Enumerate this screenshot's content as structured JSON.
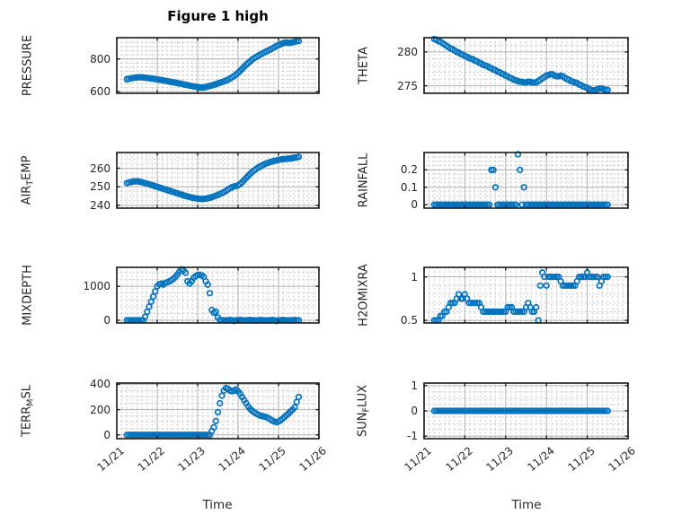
{
  "title": "Figure 1 high",
  "colors": {
    "marker": "#0072BD",
    "axis": "#1a1a1a",
    "grid_major": "#b0b0b0",
    "grid_minor": "#c2c2c2",
    "text": "#262626"
  },
  "x_axis": {
    "label": "Time",
    "lim": [
      0,
      5
    ],
    "tick_labels": [
      "11/21",
      "11/22",
      "11/23",
      "11/24",
      "11/25",
      "11/26"
    ],
    "minor_step": 0.125,
    "t0": 0.25,
    "dt": 0.05
  },
  "chart_data": [
    {
      "name": "PRESSURE",
      "type": "scatter",
      "ylabel_segments": [
        {
          "text": "PRESSURE"
        }
      ],
      "ylim": [
        590,
        930
      ],
      "yticks": [
        {
          "v": 600,
          "label": "600"
        },
        {
          "v": 800,
          "label": "800"
        }
      ],
      "y_minor_step": 25,
      "show_x_labels": false,
      "values": [
        676,
        678,
        681,
        684,
        686,
        687,
        688,
        688,
        687,
        686,
        684,
        682,
        681,
        679,
        677,
        675,
        673,
        671,
        669,
        666,
        664,
        662,
        659,
        657,
        655,
        652,
        650,
        648,
        645,
        642,
        640,
        637,
        634,
        632,
        630,
        628,
        626,
        625,
        626,
        628,
        632,
        635,
        638,
        642,
        646,
        650,
        654,
        658,
        663,
        668,
        673,
        680,
        687,
        695,
        705,
        715,
        727,
        740,
        752,
        765,
        775,
        785,
        797,
        805,
        812,
        820,
        827,
        833,
        840,
        846,
        852,
        858,
        865,
        872,
        879,
        885,
        890,
        895,
        899,
        900,
        898,
        899,
        902,
        905,
        908,
        910
      ]
    },
    {
      "name": "THETA",
      "type": "scatter",
      "ylabel_segments": [
        {
          "text": "THETA"
        }
      ],
      "ylim": [
        273.9,
        282.1
      ],
      "yticks": [
        {
          "v": 275,
          "label": "275"
        },
        {
          "v": 280,
          "label": "280"
        }
      ],
      "y_minor_step": 1,
      "show_x_labels": false,
      "values": [
        281.9,
        281.8,
        281.6,
        281.5,
        281.3,
        281.1,
        280.9,
        280.7,
        280.5,
        280.4,
        280.2,
        280.0,
        279.9,
        279.7,
        279.6,
        279.4,
        279.3,
        279.1,
        279.0,
        278.9,
        278.7,
        278.6,
        278.4,
        278.3,
        278.1,
        278.0,
        277.9,
        277.7,
        277.6,
        277.4,
        277.3,
        277.1,
        277.0,
        276.8,
        276.7,
        276.5,
        276.4,
        276.2,
        276.1,
        275.9,
        275.8,
        275.7,
        275.6,
        275.6,
        275.5,
        275.5,
        275.6,
        275.6,
        275.5,
        275.5,
        275.5,
        275.7,
        275.9,
        276.1,
        276.3,
        276.5,
        276.6,
        276.7,
        276.7,
        276.5,
        276.4,
        276.4,
        276.5,
        276.4,
        276.2,
        276.0,
        275.9,
        275.7,
        275.6,
        275.5,
        275.4,
        275.2,
        275.1,
        274.9,
        274.8,
        274.7,
        274.5,
        274.4,
        274.3,
        274.4,
        274.5,
        274.6,
        274.6,
        274.5,
        274.4,
        274.4
      ]
    },
    {
      "name": "AIR_TEMP",
      "type": "scatter",
      "ylabel_segments": [
        {
          "text": "AIR"
        },
        {
          "text": "T",
          "sub": true
        },
        {
          "text": "EMP"
        }
      ],
      "ylim": [
        238.5,
        268.5
      ],
      "yticks": [
        {
          "v": 240,
          "label": "240"
        },
        {
          "v": 250,
          "label": "250"
        },
        {
          "v": 260,
          "label": "260"
        }
      ],
      "y_minor_step": 2.5,
      "show_x_labels": false,
      "values": [
        252.0,
        252.3,
        252.6,
        252.8,
        252.9,
        253.0,
        252.8,
        252.6,
        252.3,
        252.0,
        251.7,
        251.4,
        251.0,
        250.7,
        250.3,
        250.0,
        249.6,
        249.3,
        248.9,
        248.6,
        248.2,
        247.9,
        247.5,
        247.2,
        246.8,
        246.5,
        246.1,
        245.8,
        245.4,
        245.1,
        244.8,
        244.5,
        244.2,
        244.0,
        243.8,
        243.6,
        243.5,
        243.4,
        243.5,
        243.6,
        243.8,
        244.1,
        244.4,
        244.8,
        245.2,
        245.6,
        246.1,
        246.6,
        247.2,
        247.8,
        248.5,
        249.2,
        249.8,
        250.2,
        250.4,
        250.8,
        251.5,
        252.5,
        253.6,
        254.8,
        255.9,
        257.0,
        258.0,
        258.9,
        259.7,
        260.4,
        261.0,
        261.6,
        262.1,
        262.6,
        263.0,
        263.4,
        263.7,
        264.0,
        264.2,
        264.5,
        264.7,
        264.9,
        265.0,
        265.1,
        265.2,
        265.3,
        265.5,
        265.7,
        265.9,
        266.2
      ]
    },
    {
      "name": "RAINFALL",
      "type": "scatter",
      "ylabel_segments": [
        {
          "text": "RAINFALL"
        }
      ],
      "ylim": [
        -0.02,
        0.3
      ],
      "yticks": [
        {
          "v": 0,
          "label": "0"
        },
        {
          "v": 0.1,
          "label": "0.1"
        },
        {
          "v": 0.2,
          "label": "0.2"
        }
      ],
      "y_minor_step": 0.025,
      "show_x_labels": false,
      "values": [
        0,
        0,
        0,
        0,
        0,
        0,
        0,
        0,
        0,
        0,
        0,
        0,
        0,
        0,
        0,
        0,
        0,
        0,
        0,
        0,
        0,
        0,
        0,
        0,
        0,
        0,
        0,
        0,
        0.2,
        0.2,
        0.1,
        0,
        0,
        0,
        0,
        0,
        0,
        0,
        0,
        0,
        0,
        0.29,
        0.2,
        0,
        0.1,
        0,
        0,
        0,
        0,
        0,
        0,
        0,
        0,
        0,
        0,
        0,
        0,
        0,
        0,
        0,
        0,
        0,
        0,
        0,
        0,
        0,
        0,
        0,
        0,
        0,
        0,
        0,
        0,
        0,
        0,
        0,
        0,
        0,
        0,
        0,
        0,
        0,
        0,
        0,
        0,
        0
      ]
    },
    {
      "name": "MIXDEPTH",
      "type": "scatter",
      "ylabel_segments": [
        {
          "text": "MIXDEPTH"
        }
      ],
      "ylim": [
        -80,
        1560
      ],
      "yticks": [
        {
          "v": 0,
          "label": "0"
        },
        {
          "v": 1000,
          "label": "1000"
        }
      ],
      "y_minor_step": 200,
      "show_x_labels": false,
      "values": [
        0,
        0,
        0,
        0,
        0,
        0,
        0,
        0,
        0,
        100,
        250,
        400,
        550,
        700,
        850,
        1000,
        1060,
        1080,
        1050,
        1100,
        1120,
        1150,
        1180,
        1220,
        1280,
        1350,
        1430,
        1500,
        1470,
        1400,
        1150,
        1080,
        1150,
        1250,
        1300,
        1330,
        1340,
        1320,
        1280,
        1150,
        1050,
        800,
        300,
        220,
        250,
        80,
        10,
        0,
        0,
        -10,
        0,
        10,
        0,
        -20,
        0,
        0,
        10,
        0,
        -10,
        0,
        0,
        10,
        0,
        0,
        -10,
        0,
        10,
        0,
        0,
        -10,
        0,
        0,
        10,
        0,
        -20,
        0,
        0,
        10,
        0,
        0,
        -10,
        0,
        0,
        10,
        0,
        0
      ]
    },
    {
      "name": "H2OMIXRA",
      "type": "scatter",
      "ylabel_segments": [
        {
          "text": "H2OMIXRA"
        }
      ],
      "ylim": [
        0.47,
        1.11
      ],
      "yticks": [
        {
          "v": 0.5,
          "label": "0.5"
        },
        {
          "v": 1,
          "label": "1"
        }
      ],
      "y_minor_step": 0.1,
      "show_x_labels": false,
      "values": [
        0.5,
        0.5,
        0.5,
        0.55,
        0.55,
        0.6,
        0.6,
        0.65,
        0.7,
        0.7,
        0.7,
        0.75,
        0.8,
        0.75,
        0.75,
        0.8,
        0.75,
        0.7,
        0.7,
        0.7,
        0.7,
        0.7,
        0.7,
        0.65,
        0.6,
        0.6,
        0.6,
        0.6,
        0.6,
        0.6,
        0.6,
        0.6,
        0.6,
        0.6,
        0.6,
        0.6,
        0.65,
        0.65,
        0.65,
        0.6,
        0.6,
        0.6,
        0.6,
        0.6,
        0.6,
        0.65,
        0.7,
        0.65,
        0.6,
        0.6,
        0.65,
        0.5,
        0.9,
        1.05,
        1.0,
        0.9,
        1.0,
        1.0,
        1.0,
        1.0,
        1.0,
        1.0,
        0.95,
        0.9,
        0.9,
        0.9,
        0.9,
        0.9,
        0.9,
        0.9,
        0.95,
        1.0,
        1.0,
        1.0,
        1.0,
        1.05,
        1.0,
        1.0,
        1.0,
        1.0,
        1.0,
        0.9,
        0.95,
        1.0,
        1.0,
        1.0
      ]
    },
    {
      "name": "TERR_MSL",
      "type": "scatter",
      "ylabel_segments": [
        {
          "text": "TERR"
        },
        {
          "text": "M",
          "sub": true
        },
        {
          "text": "SL"
        }
      ],
      "ylim": [
        -30,
        410
      ],
      "yticks": [
        {
          "v": 0,
          "label": "0"
        },
        {
          "v": 200,
          "label": "200"
        },
        {
          "v": 400,
          "label": "400"
        }
      ],
      "y_minor_step": 50,
      "show_x_labels": true,
      "values": [
        0,
        0,
        0,
        0,
        0,
        0,
        0,
        0,
        0,
        0,
        0,
        0,
        0,
        0,
        0,
        0,
        0,
        0,
        0,
        0,
        0,
        0,
        0,
        0,
        0,
        0,
        0,
        0,
        0,
        0,
        0,
        0,
        0,
        0,
        0,
        0,
        0,
        0,
        0,
        0,
        0,
        0,
        30,
        60,
        110,
        180,
        250,
        310,
        350,
        370,
        365,
        350,
        345,
        350,
        360,
        345,
        325,
        300,
        275,
        250,
        225,
        205,
        190,
        178,
        168,
        160,
        152,
        148,
        145,
        140,
        132,
        122,
        112,
        105,
        100,
        105,
        115,
        128,
        142,
        155,
        170,
        185,
        200,
        218,
        260,
        300
      ]
    },
    {
      "name": "SUN_FLUX",
      "type": "scatter",
      "ylabel_segments": [
        {
          "text": "SUN"
        },
        {
          "text": "F",
          "sub": true
        },
        {
          "text": "LUX"
        }
      ],
      "ylim": [
        -1.1,
        1.1
      ],
      "yticks": [
        {
          "v": -1,
          "label": "-1"
        },
        {
          "v": 0,
          "label": "0"
        },
        {
          "v": 1,
          "label": "1"
        }
      ],
      "y_minor_step": 0.25,
      "show_x_labels": true,
      "values": [
        0,
        0,
        0,
        0,
        0,
        0,
        0,
        0,
        0,
        0,
        0,
        0,
        0,
        0,
        0,
        0,
        0,
        0,
        0,
        0,
        0,
        0,
        0,
        0,
        0,
        0,
        0,
        0,
        0,
        0,
        0,
        0,
        0,
        0,
        0,
        0,
        0,
        0,
        0,
        0,
        0,
        0,
        0,
        0,
        0,
        0,
        0,
        0,
        0,
        0,
        0,
        0,
        0,
        0,
        0,
        0,
        0,
        0,
        0,
        0,
        0,
        0,
        0,
        0,
        0,
        0,
        0,
        0,
        0,
        0,
        0,
        0,
        0,
        0,
        0,
        0,
        0,
        0,
        0,
        0,
        0,
        0,
        0,
        0,
        0,
        0
      ]
    }
  ]
}
